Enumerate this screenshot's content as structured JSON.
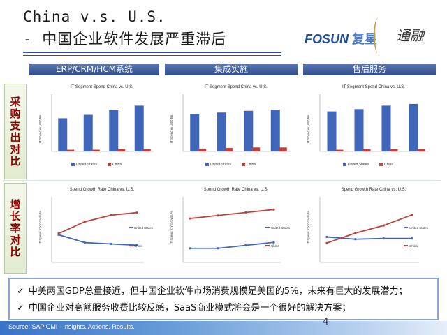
{
  "header": {
    "title_line1": "China v.s. U.S.",
    "title_line2": "- 中国企业软件发展严重滞后",
    "logo_fosun": "FOSUN",
    "logo_fosun_cn": "复星",
    "logo_seal": "通融"
  },
  "columns": [
    "ERP/CRM/HCM系统",
    "集成实施",
    "售后服务"
  ],
  "rows": [
    "采购支出对比",
    "增长率对比"
  ],
  "bullets": [
    "中美两国GDP总量接近，但中国企业软件市场消费规模是美国的5%，未来有巨大的发展潜力；",
    "中国企业对高额服务收费比较反感，SaaS商业模式将会是一个很好的解决方案；"
  ],
  "footer": {
    "source": "Source: SAP CMI - Insights. Actions. Results.",
    "page": "4"
  },
  "colors": {
    "us": "#3f66b9",
    "china": "#c0413b",
    "header_band": "#2e4c8c"
  },
  "chart_data": [
    {
      "type": "bar",
      "title": "IT Segment Spend China vs. U.S.",
      "ylabel": "IT Spend in USD Bn",
      "legend": [
        "United States",
        "China"
      ],
      "legend_position": "bottom",
      "series": [
        {
          "name": "United States",
          "values": [
            58,
            64,
            72,
            80
          ]
        },
        {
          "name": "China",
          "values": [
            3,
            3,
            4,
            4
          ]
        }
      ]
    },
    {
      "type": "bar",
      "title": "IT Segment Spend China vs. U.S.",
      "ylabel": "IT Spend in USD Bn",
      "legend": [
        "United States",
        "China"
      ],
      "legend_position": "bottom",
      "series": [
        {
          "name": "United States",
          "values": [
            65,
            68,
            71,
            73
          ]
        },
        {
          "name": "China",
          "values": [
            5,
            6,
            7,
            7
          ]
        }
      ]
    },
    {
      "type": "bar",
      "title": "IT Segment Spend China vs. U.S.",
      "ylabel": "IT Spend in USD Bn",
      "legend": [
        "United States",
        "China"
      ],
      "legend_position": "bottom",
      "series": [
        {
          "name": "United States",
          "values": [
            70,
            74,
            80,
            83
          ]
        },
        {
          "name": "China",
          "values": [
            3,
            4,
            4,
            4
          ]
        }
      ]
    },
    {
      "type": "line",
      "title": "Spend Growth Rate China vs. U.S.",
      "ylabel": "IT Spend Y/Y Growth %",
      "legend": [
        "United States",
        "China"
      ],
      "legend_position": "bottom-right",
      "series": [
        {
          "name": "United States",
          "values": [
            11.8,
            10.6,
            10.4,
            10.2
          ]
        },
        {
          "name": "China",
          "values": [
            12.0,
            13.8,
            14.8,
            15.2
          ]
        }
      ]
    },
    {
      "type": "line",
      "title": "Spend Growth Rate China vs. U.S.",
      "ylabel": "IT Spend Y/Y Growth %",
      "legend": [
        "United States",
        "China"
      ],
      "legend_position": "bottom-right",
      "series": [
        {
          "name": "United States",
          "values": [
            3.0,
            3.0,
            3.6,
            4.2
          ]
        },
        {
          "name": "China",
          "values": [
            9.0,
            9.6,
            10.2,
            10.8
          ]
        }
      ]
    },
    {
      "type": "line",
      "title": "Spend Growth Rate China vs. U.S.",
      "ylabel": "IT Spend Y/Y Growth %",
      "legend": [
        "United States",
        "China"
      ],
      "legend_position": "bottom-right",
      "series": [
        {
          "name": "United States",
          "values": [
            6.0,
            5.7,
            5.8,
            5.8
          ]
        },
        {
          "name": "China",
          "values": [
            5.2,
            6.5,
            7.5,
            8.9
          ]
        }
      ]
    }
  ]
}
